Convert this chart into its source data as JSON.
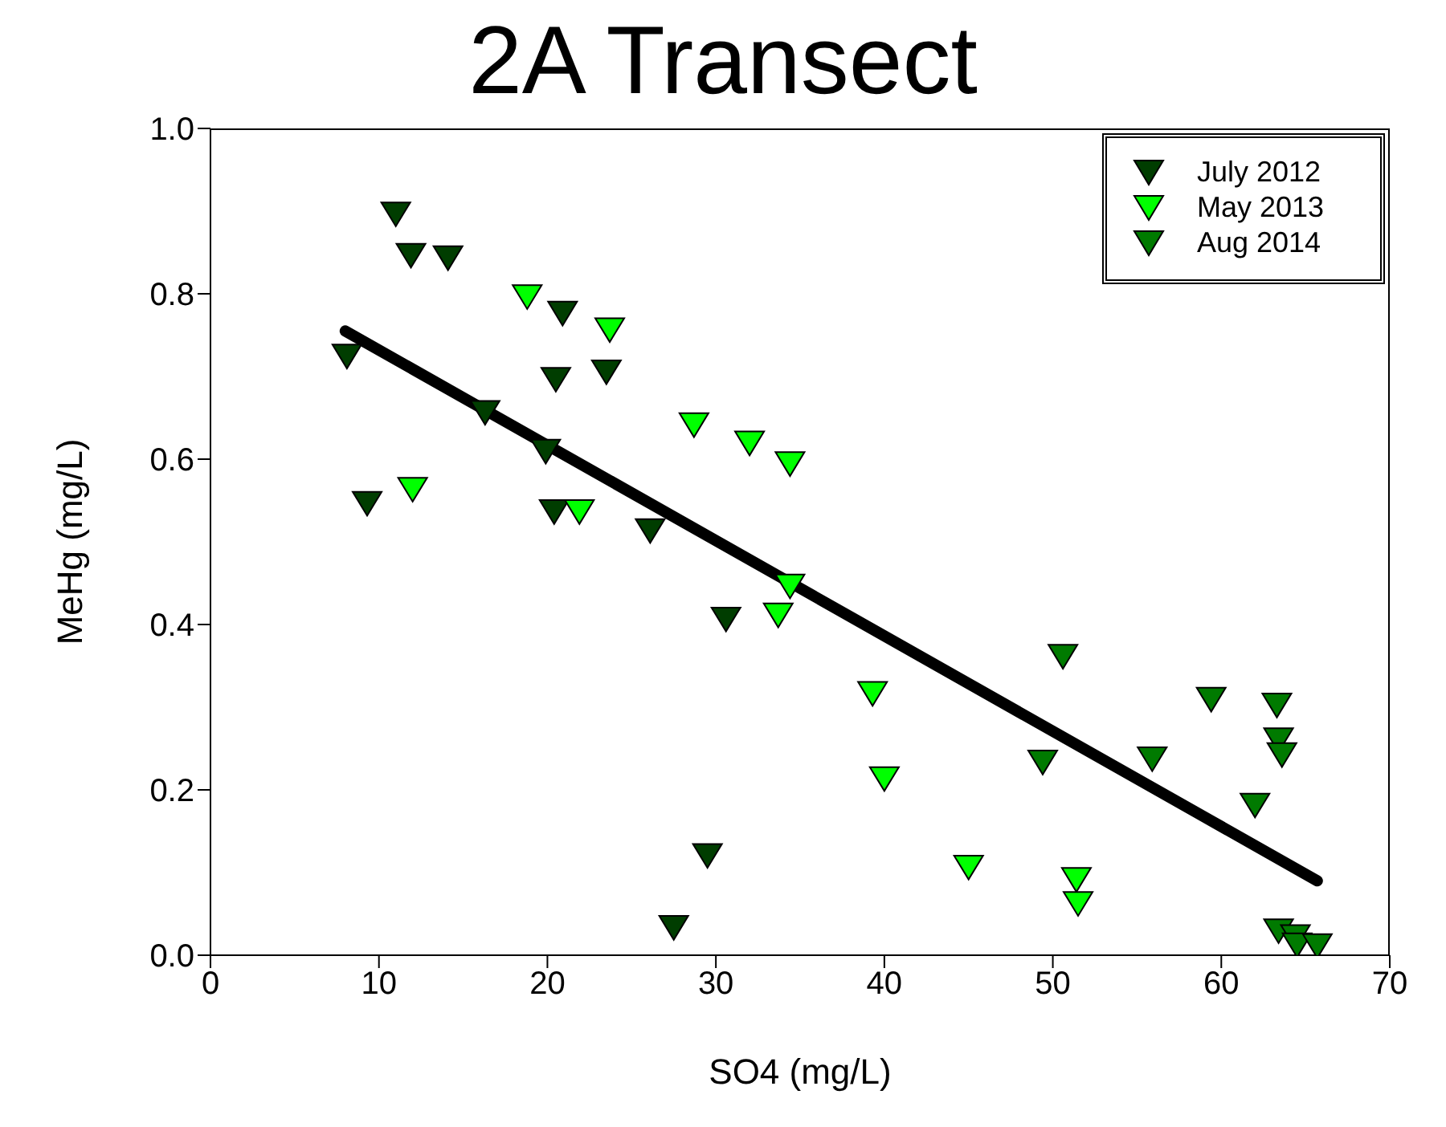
{
  "chart_data": {
    "type": "scatter",
    "title": "2A Transect",
    "xlabel": "SO4 (mg/L)",
    "ylabel": "MeHg (mg/L)",
    "xlim": [
      0,
      70
    ],
    "xticks": [
      0,
      10,
      20,
      30,
      40,
      50,
      60,
      70
    ],
    "ylim": [
      0,
      1.0
    ],
    "yticks": [
      {
        "value": 0,
        "label": "0.0"
      },
      {
        "value": 0.2,
        "label": "0.2"
      },
      {
        "value": 0.4,
        "label": "0.4"
      },
      {
        "value": 0.6,
        "label": "0.6"
      },
      {
        "value": 0.8,
        "label": "0.8"
      },
      {
        "value": 1.0,
        "label": "1.0"
      }
    ],
    "marker": "triangle",
    "legend": "top right",
    "grid": false,
    "series": [
      {
        "name": "July 2012",
        "color": "#003d00",
        "x": [
          11.0,
          11.9,
          14.1,
          20.9,
          8.1,
          20.5,
          23.5,
          16.3,
          19.9,
          9.3,
          20.4,
          26.1,
          30.6,
          29.5,
          27.5
        ],
        "values": [
          0.9,
          0.85,
          0.847,
          0.78,
          0.728,
          0.7,
          0.709,
          0.66,
          0.613,
          0.55,
          0.54,
          0.517,
          0.41,
          0.124,
          0.037
        ]
      },
      {
        "name": "May 2013",
        "color": "#00ff00",
        "x": [
          18.8,
          23.7,
          28.7,
          32.0,
          34.4,
          12.0,
          21.9,
          34.4,
          33.7,
          39.3,
          40.0,
          45.0,
          51.4,
          51.5
        ],
        "values": [
          0.8,
          0.76,
          0.645,
          0.623,
          0.598,
          0.567,
          0.54,
          0.45,
          0.415,
          0.32,
          0.217,
          0.11,
          0.095,
          0.066
        ]
      },
      {
        "name": "Aug 2014",
        "color": "#007a00",
        "x": [
          50.6,
          49.4,
          59.4,
          55.9,
          63.3,
          63.4,
          63.6,
          62.0,
          63.4,
          64.4,
          64.5,
          65.7
        ],
        "values": [
          0.365,
          0.237,
          0.313,
          0.241,
          0.306,
          0.264,
          0.246,
          0.185,
          0.033,
          0.026,
          0.016,
          0.015
        ]
      },
      {
        "type": "line",
        "marker": "none",
        "color": "#000000",
        "x": [
          8.0,
          65.7
        ],
        "values": [
          0.755,
          0.09
        ]
      }
    ]
  }
}
